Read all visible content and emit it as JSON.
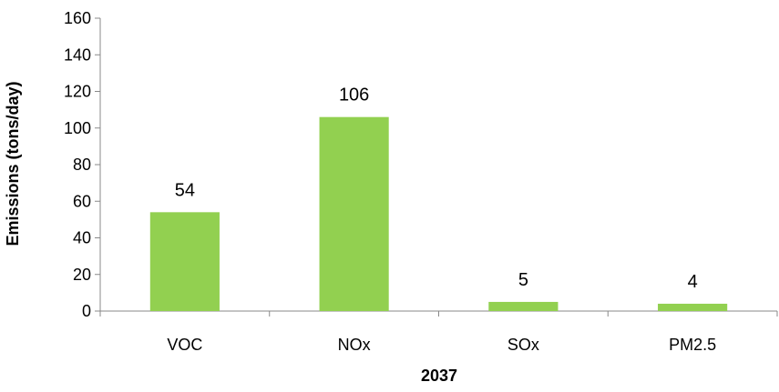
{
  "chart_data": {
    "type": "bar",
    "categories": [
      "VOC",
      "NOx",
      "SOx",
      "PM2.5"
    ],
    "values": [
      54,
      106,
      5,
      4
    ],
    "data_labels": [
      "54",
      "106",
      "5",
      "4"
    ],
    "title": "",
    "xlabel": "2037",
    "ylabel": "Emissions (tons/day)",
    "ylim": [
      0,
      160
    ],
    "yticks": [
      0,
      20,
      40,
      60,
      80,
      100,
      120,
      140,
      160
    ],
    "ytick_labels": [
      "0",
      "20",
      "40",
      "60",
      "80",
      "100",
      "120",
      "140",
      "160"
    ],
    "grid": false,
    "legend": "none",
    "bar_color": "#92d050",
    "axis_color": "#888888"
  }
}
